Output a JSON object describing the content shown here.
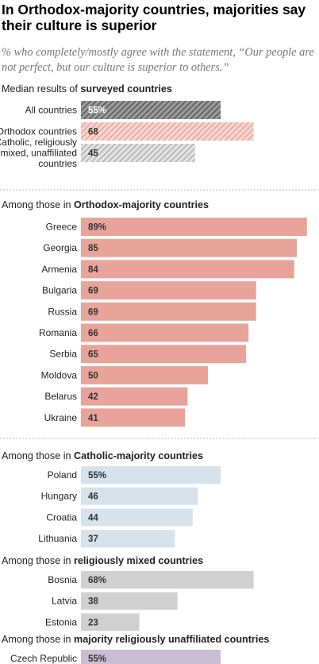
{
  "title": "In Orthodox-majority countries, majorities say their culture is superior",
  "subtitle": "% who completely/mostly agree with the statement, “Our people are not perfect, but our culture is superior to others.”",
  "colors": {
    "all": "#6b6b6b",
    "orthodox": "#e8a49a",
    "catholic": "#d6e2ec",
    "mixed": "#d0d0d0",
    "unaffiliated": "#c9bdd3",
    "divider": "#bbbbbb"
  },
  "chart_data": [
    {
      "type": "bar",
      "orientation": "horizontal",
      "title_prefix": "Median results of ",
      "title_bold": "surveyed countries",
      "categories": [
        "All countries",
        "Orthodox countries",
        "Catholic, religiously mixed, unaffiliated countries"
      ],
      "category_lines": [
        [
          "All countries"
        ],
        [
          "Orthodox countries"
        ],
        [
          "Catholic, religiously",
          "mixed, unaffiliated",
          "countries"
        ]
      ],
      "values": [
        55,
        68,
        45
      ],
      "value_labels": [
        "55%",
        "68",
        "45"
      ],
      "pattern": "hatched",
      "colors": [
        "#6b6b6b",
        "#e8a49a",
        "#b9b9b9"
      ]
    },
    {
      "type": "bar",
      "orientation": "horizontal",
      "title_prefix": "Among those in ",
      "title_bold": "Orthodox-majority countries",
      "categories": [
        "Greece",
        "Georgia",
        "Armenia",
        "Bulgaria",
        "Russia",
        "Romania",
        "Serbia",
        "Moldova",
        "Belarus",
        "Ukraine"
      ],
      "values": [
        89,
        85,
        84,
        69,
        69,
        66,
        65,
        50,
        42,
        41
      ],
      "value_labels": [
        "89%",
        "85",
        "84",
        "69",
        "69",
        "66",
        "65",
        "50",
        "42",
        "41"
      ],
      "color": "#e8a49a"
    },
    {
      "type": "bar",
      "orientation": "horizontal",
      "title_prefix": "Among those in ",
      "title_bold": "Catholic-majority countries",
      "categories": [
        "Poland",
        "Hungary",
        "Croatia",
        "Lithuania"
      ],
      "values": [
        55,
        46,
        44,
        37
      ],
      "value_labels": [
        "55%",
        "46",
        "44",
        "37"
      ],
      "color": "#d6e2ec"
    },
    {
      "type": "bar",
      "orientation": "horizontal",
      "title_prefix": "Among those in ",
      "title_bold": "religiously mixed countries",
      "categories": [
        "Bosnia",
        "Latvia",
        "Estonia"
      ],
      "values": [
        68,
        38,
        23
      ],
      "value_labels": [
        "68%",
        "38",
        "23"
      ],
      "color": "#d0d0d0"
    },
    {
      "type": "bar",
      "orientation": "horizontal",
      "title_prefix": "Among those in ",
      "title_bold": "majority religiously unaffiliated countries",
      "categories": [
        "Czech Republic"
      ],
      "values": [
        55
      ],
      "value_labels": [
        "55%"
      ],
      "color": "#c9bdd3"
    }
  ]
}
